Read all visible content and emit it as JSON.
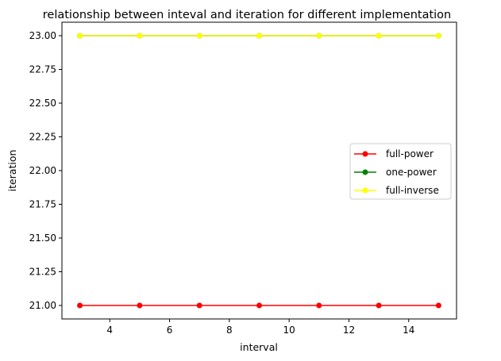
{
  "chart_data": {
    "type": "line",
    "title": "relationship between inteval and iteration for different implementation",
    "xlabel": "interval",
    "ylabel": "iteration",
    "x": [
      3,
      5,
      7,
      9,
      11,
      13,
      15
    ],
    "xlim": [
      2.4,
      15.6
    ],
    "ylim": [
      20.9,
      23.1
    ],
    "xticks": [
      4,
      6,
      8,
      10,
      12,
      14
    ],
    "yticks": [
      21.0,
      21.25,
      21.5,
      21.75,
      22.0,
      22.25,
      22.5,
      22.75,
      23.0
    ],
    "xtick_labels": [
      "4",
      "6",
      "8",
      "10",
      "12",
      "14"
    ],
    "ytick_labels": [
      "21.00",
      "21.25",
      "21.50",
      "21.75",
      "22.00",
      "22.25",
      "22.50",
      "22.75",
      "23.00"
    ],
    "grid": false,
    "legend_position": "center-right",
    "series": [
      {
        "name": "full-power",
        "color": "#ff0000",
        "marker": "circle",
        "values": [
          21,
          21,
          21,
          21,
          21,
          21,
          21
        ]
      },
      {
        "name": "one-power",
        "color": "#008000",
        "marker": "circle",
        "values": [
          23,
          23,
          23,
          23,
          23,
          23,
          23
        ]
      },
      {
        "name": "full-inverse",
        "color": "#ffff00",
        "marker": "circle",
        "values": [
          23,
          23,
          23,
          23,
          23,
          23,
          23
        ]
      }
    ]
  }
}
